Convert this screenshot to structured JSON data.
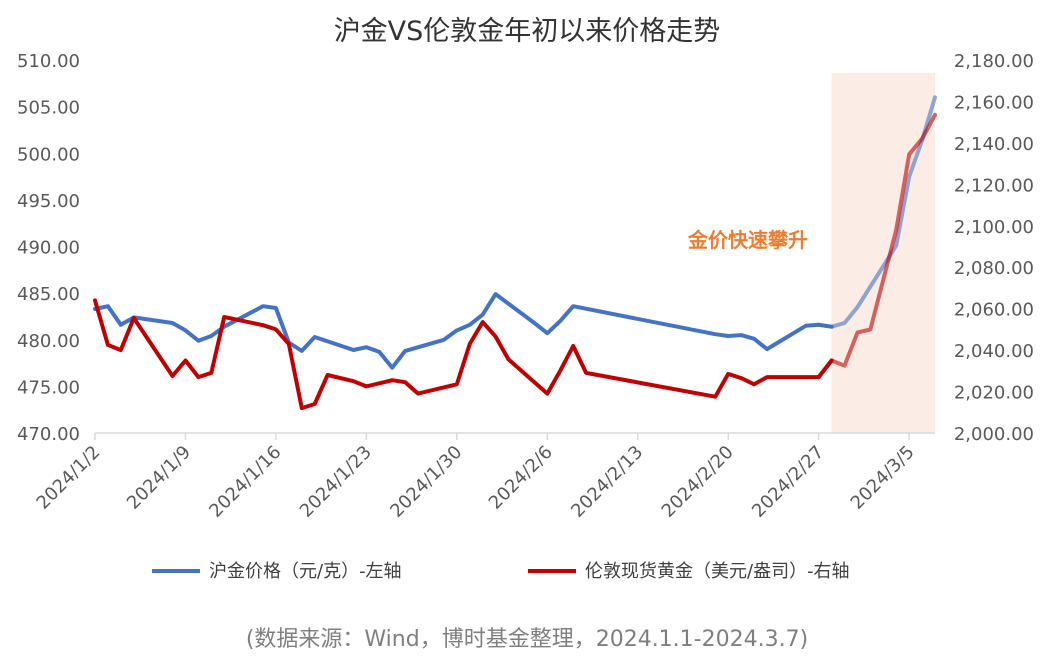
{
  "chart_data": {
    "type": "line",
    "title": "沪金VS伦敦金年初以来价格走势",
    "source": "(数据来源：Wind，博时基金整理，2024.1.1-2024.3.7)",
    "annotation": "金价快速攀升",
    "left_axis": {
      "ylim": [
        470,
        510
      ],
      "ticks": [
        "470.00",
        "475.00",
        "480.00",
        "485.00",
        "490.00",
        "495.00",
        "500.00",
        "505.00",
        "510.00"
      ]
    },
    "right_axis": {
      "ylim": [
        2000,
        2180
      ],
      "ticks": [
        "2,000.00",
        "2,020.00",
        "2,040.00",
        "2,060.00",
        "2,080.00",
        "2,100.00",
        "2,120.00",
        "2,140.00",
        "2,160.00",
        "2,180.00"
      ]
    },
    "x_ticks": [
      "2024/1/2",
      "2024/1/9",
      "2024/1/16",
      "2024/1/23",
      "2024/1/30",
      "2024/2/6",
      "2024/2/13",
      "2024/2/20",
      "2024/2/27",
      "2024/3/5"
    ],
    "x_start": "2024-01-02",
    "x_end": "2024-03-07",
    "highlight_range": [
      "2024-02-28",
      "2024-03-07"
    ],
    "colors": {
      "shfe": "#4472C4",
      "london": "#C00000",
      "highlight_bg": "#FBEDE5",
      "annotation": "#ED7D31",
      "axis": "#D9D9D9"
    },
    "series": [
      {
        "name": "沪金价格（元/克）-左轴",
        "axis": "left",
        "points": [
          [
            "2024-01-02",
            483.3
          ],
          [
            "2024-01-03",
            483.6
          ],
          [
            "2024-01-04",
            481.6
          ],
          [
            "2024-01-05",
            482.4
          ],
          [
            "2024-01-08",
            481.8
          ],
          [
            "2024-01-09",
            481.0
          ],
          [
            "2024-01-10",
            479.9
          ],
          [
            "2024-01-11",
            480.4
          ],
          [
            "2024-01-12",
            481.4
          ],
          [
            "2024-01-15",
            483.6
          ],
          [
            "2024-01-16",
            483.4
          ],
          [
            "2024-01-17",
            479.7
          ],
          [
            "2024-01-18",
            478.8
          ],
          [
            "2024-01-19",
            480.3
          ],
          [
            "2024-01-22",
            478.9
          ],
          [
            "2024-01-23",
            479.2
          ],
          [
            "2024-01-24",
            478.7
          ],
          [
            "2024-01-25",
            477.0
          ],
          [
            "2024-01-26",
            478.8
          ],
          [
            "2024-01-29",
            480.0
          ],
          [
            "2024-01-30",
            481.0
          ],
          [
            "2024-01-31",
            481.6
          ],
          [
            "2024-02-01",
            482.7
          ],
          [
            "2024-02-02",
            484.9
          ],
          [
            "2024-02-05",
            481.8
          ],
          [
            "2024-02-06",
            480.7
          ],
          [
            "2024-02-07",
            482.0
          ],
          [
            "2024-02-08",
            483.6
          ],
          [
            "2024-02-19",
            480.6
          ],
          [
            "2024-02-20",
            480.4
          ],
          [
            "2024-02-21",
            480.5
          ],
          [
            "2024-02-22",
            480.1
          ],
          [
            "2024-02-23",
            479.0
          ],
          [
            "2024-02-26",
            481.5
          ],
          [
            "2024-02-27",
            481.6
          ],
          [
            "2024-02-28",
            481.4
          ],
          [
            "2024-02-29",
            481.8
          ],
          [
            "2024-03-01",
            483.5
          ],
          [
            "2024-03-04",
            490.1
          ],
          [
            "2024-03-05",
            497.5
          ],
          [
            "2024-03-06",
            501.4
          ],
          [
            "2024-03-07",
            506.0
          ]
        ]
      },
      {
        "name": "伦敦现货黄金（美元/盎司）-右轴",
        "axis": "right",
        "points": [
          [
            "2024-01-02",
            2064.0
          ],
          [
            "2024-01-03",
            2042.5
          ],
          [
            "2024-01-04",
            2040.0
          ],
          [
            "2024-01-05",
            2055.5
          ],
          [
            "2024-01-08",
            2027.5
          ],
          [
            "2024-01-09",
            2035.0
          ],
          [
            "2024-01-10",
            2027.0
          ],
          [
            "2024-01-11",
            2029.0
          ],
          [
            "2024-01-12",
            2056.0
          ],
          [
            "2024-01-15",
            2052.0
          ],
          [
            "2024-01-16",
            2050.0
          ],
          [
            "2024-01-17",
            2043.0
          ],
          [
            "2024-01-18",
            2012.0
          ],
          [
            "2024-01-19",
            2014.0
          ],
          [
            "2024-01-20",
            2028.0
          ],
          [
            "2024-01-22",
            2025.0
          ],
          [
            "2024-01-23",
            2022.5
          ],
          [
            "2024-01-24",
            2024.0
          ],
          [
            "2024-01-25",
            2025.5
          ],
          [
            "2024-01-26",
            2024.5
          ],
          [
            "2024-01-27",
            2019.0
          ],
          [
            "2024-01-30",
            2023.5
          ],
          [
            "2024-01-31",
            2043.0
          ],
          [
            "2024-02-01",
            2053.5
          ],
          [
            "2024-02-02",
            2046.5
          ],
          [
            "2024-02-03",
            2035.5
          ],
          [
            "2024-02-06",
            2019.0
          ],
          [
            "2024-02-07",
            2030.0
          ],
          [
            "2024-02-08",
            2042.0
          ],
          [
            "2024-02-09",
            2029.0
          ],
          [
            "2024-02-19",
            2017.5
          ],
          [
            "2024-02-20",
            2028.5
          ],
          [
            "2024-02-21",
            2026.5
          ],
          [
            "2024-02-22",
            2023.5
          ],
          [
            "2024-02-23",
            2027.0
          ],
          [
            "2024-02-27",
            2027.0
          ],
          [
            "2024-02-28",
            2035.0
          ],
          [
            "2024-02-29",
            2032.5
          ],
          [
            "2024-03-01",
            2048.5
          ],
          [
            "2024-03-02",
            2050.0
          ],
          [
            "2024-03-04",
            2098.0
          ],
          [
            "2024-03-05",
            2134.5
          ],
          [
            "2024-03-06",
            2142.0
          ],
          [
            "2024-03-07",
            2153.5
          ]
        ]
      }
    ]
  }
}
